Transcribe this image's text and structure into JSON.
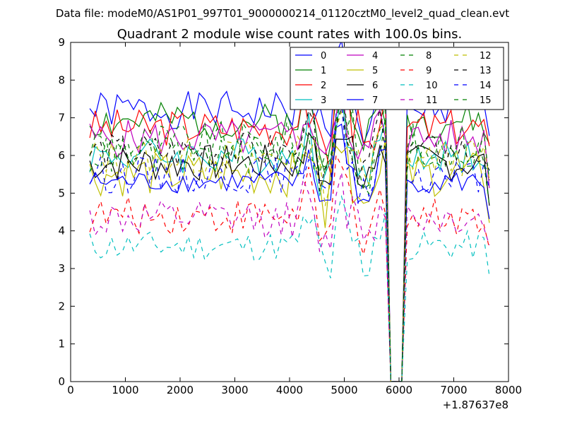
{
  "chart_data": {
    "type": "line",
    "suptitle": "Data file: modeM0/AS1P01_997T01_9000000214_01120cztM0_level2_quad_clean.evt",
    "title": "Quadrant 2 module wise count rates with 100.0s bins.",
    "xlabel": "",
    "ylabel": "",
    "x_offset_label": "+1.87637e8",
    "xlim": [
      0,
      8000
    ],
    "ylim": [
      0,
      9
    ],
    "xticks": [
      "0",
      "1000",
      "2000",
      "3000",
      "4000",
      "5000",
      "6000",
      "7000",
      "8000"
    ],
    "yticks": [
      "0",
      "1",
      "2",
      "3",
      "4",
      "5",
      "6",
      "7",
      "8",
      "9"
    ],
    "grid": false,
    "legend_position": "top-right",
    "series": [
      {
        "name": "0",
        "color": "#0000ff",
        "dash": "solid",
        "base": 7.2,
        "amp": 0.25,
        "seed": 1
      },
      {
        "name": "1",
        "color": "#008000",
        "dash": "solid",
        "base": 6.9,
        "amp": 0.25,
        "seed": 2
      },
      {
        "name": "2",
        "color": "#ff0000",
        "dash": "solid",
        "base": 6.75,
        "amp": 0.25,
        "seed": 3
      },
      {
        "name": "3",
        "color": "#00bfbf",
        "dash": "solid",
        "base": 6.0,
        "amp": 0.25,
        "seed": 4
      },
      {
        "name": "4",
        "color": "#bf00bf",
        "dash": "solid",
        "base": 6.45,
        "amp": 0.25,
        "seed": 5
      },
      {
        "name": "5",
        "color": "#bfbf00",
        "dash": "solid",
        "base": 5.5,
        "amp": 0.3,
        "seed": 6
      },
      {
        "name": "6",
        "color": "#000000",
        "dash": "solid",
        "base": 5.8,
        "amp": 0.25,
        "seed": 7
      },
      {
        "name": "7",
        "color": "#0000ff",
        "dash": "solid",
        "base": 5.3,
        "amp": 0.15,
        "seed": 8
      },
      {
        "name": "8",
        "color": "#008000",
        "dash": "dashed",
        "base": 6.3,
        "amp": 0.3,
        "seed": 9
      },
      {
        "name": "9",
        "color": "#ff0000",
        "dash": "dashed",
        "base": 4.4,
        "amp": 0.25,
        "seed": 10
      },
      {
        "name": "10",
        "color": "#00bfbf",
        "dash": "dashed",
        "base": 3.6,
        "amp": 0.2,
        "seed": 11
      },
      {
        "name": "11",
        "color": "#bf00bf",
        "dash": "dashed",
        "base": 4.3,
        "amp": 0.25,
        "seed": 12
      },
      {
        "name": "12",
        "color": "#bfbf00",
        "dash": "dashed",
        "base": 5.95,
        "amp": 0.25,
        "seed": 13
      },
      {
        "name": "13",
        "color": "#000000",
        "dash": "dashed",
        "base": 6.1,
        "amp": 0.25,
        "seed": 14
      },
      {
        "name": "14",
        "color": "#0000ff",
        "dash": "dashed",
        "base": 5.5,
        "amp": 0.25,
        "seed": 15
      },
      {
        "name": "15",
        "color": "#008000",
        "dash": "dashed",
        "base": 6.0,
        "amp": 0.25,
        "seed": 16
      }
    ],
    "x_start": 350,
    "x_step": 100,
    "x_end": 7650,
    "gap_start": 5850,
    "gap_end": 6050,
    "dip_window": [
      4150,
      5850
    ]
  }
}
